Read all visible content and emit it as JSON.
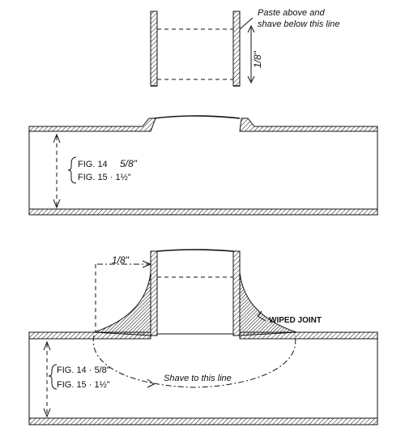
{
  "figure": {
    "top_piece": {
      "note_line1": "Paste above and",
      "note_line2": "shave below this line",
      "dimension": "1/8\""
    },
    "middle_pipe": {
      "label_fig14": "FIG. 14",
      "value_fig14": "5/8\"",
      "label_fig15": "FIG. 15 · 1½\""
    },
    "bottom_assembly": {
      "dimension": "1/8\"",
      "joint_label": "WIPED JOINT",
      "shave_label": "Shave to this line",
      "label_fig14": "FIG. 14 · 5/8\"",
      "label_fig15": "FIG. 15 · 1½\""
    }
  }
}
